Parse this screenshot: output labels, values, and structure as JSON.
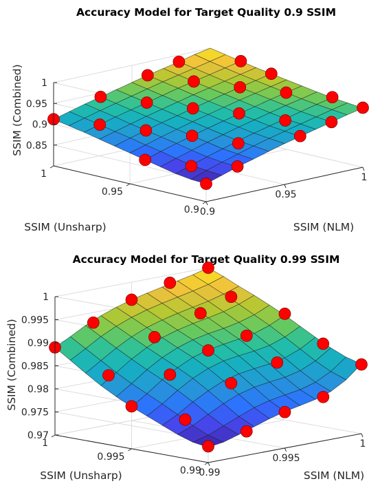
{
  "chart_data": [
    {
      "type": "surface",
      "title": "Accuracy Model for Target Quality 0.9 SSIM",
      "xlabel": "SSIM (NLM)",
      "ylabel": "SSIM (Unsharp)",
      "zlabel": "SSIM (Combined)",
      "xlim": [
        0.9,
        1
      ],
      "ylim": [
        0.9,
        1
      ],
      "zlim": [
        0.8,
        1
      ],
      "xticks": [
        "0.9",
        "0.95",
        "1"
      ],
      "yticks": [
        "0.9",
        "0.95",
        "1"
      ],
      "zticks": [
        "0.85",
        "0.9",
        "0.95",
        "1"
      ],
      "grid": true,
      "colormap": [
        "#3e26a8",
        "#4746eb",
        "#2c73fe",
        "#2795d9",
        "#16adc5",
        "#24bfa4",
        "#68c95e",
        "#b3c832",
        "#f0c03d",
        "#f9e51c"
      ],
      "grid_x": [
        0.9,
        0.91,
        0.92,
        0.93,
        0.94,
        0.95,
        0.96,
        0.97,
        0.98,
        0.99,
        1.0
      ],
      "grid_y": [
        0.9,
        0.91,
        0.92,
        0.93,
        0.94,
        0.95,
        0.96,
        0.97,
        0.98,
        0.99,
        1.0
      ],
      "surface_z": [
        [
          0.843,
          0.855,
          0.867,
          0.877,
          0.888,
          0.898,
          0.907,
          0.916,
          0.925,
          0.934,
          0.942
        ],
        [
          0.845,
          0.858,
          0.87,
          0.881,
          0.892,
          0.902,
          0.911,
          0.92,
          0.929,
          0.938,
          0.946
        ],
        [
          0.85,
          0.862,
          0.874,
          0.885,
          0.896,
          0.906,
          0.915,
          0.924,
          0.933,
          0.942,
          0.95
        ],
        [
          0.858,
          0.87,
          0.881,
          0.892,
          0.902,
          0.912,
          0.921,
          0.93,
          0.939,
          0.947,
          0.955
        ],
        [
          0.866,
          0.878,
          0.889,
          0.899,
          0.909,
          0.918,
          0.927,
          0.936,
          0.945,
          0.953,
          0.961
        ],
        [
          0.874,
          0.885,
          0.896,
          0.906,
          0.916,
          0.925,
          0.934,
          0.943,
          0.951,
          0.959,
          0.967
        ],
        [
          0.882,
          0.893,
          0.903,
          0.913,
          0.922,
          0.931,
          0.94,
          0.949,
          0.957,
          0.965,
          0.973
        ],
        [
          0.89,
          0.9,
          0.91,
          0.92,
          0.929,
          0.938,
          0.947,
          0.955,
          0.963,
          0.971,
          0.979
        ],
        [
          0.898,
          0.908,
          0.918,
          0.927,
          0.936,
          0.945,
          0.954,
          0.962,
          0.97,
          0.978,
          0.986
        ],
        [
          0.905,
          0.915,
          0.925,
          0.934,
          0.943,
          0.952,
          0.961,
          0.969,
          0.977,
          0.985,
          0.993
        ],
        [
          0.912,
          0.922,
          0.932,
          0.941,
          0.95,
          0.959,
          0.968,
          0.976,
          0.984,
          0.993,
          1.0
        ]
      ],
      "points": [
        [
          0.9,
          0.9,
          0.843
        ],
        [
          0.92,
          0.9,
          0.868
        ],
        [
          0.96,
          0.9,
          0.908
        ],
        [
          0.98,
          0.9,
          0.925
        ],
        [
          1.0,
          0.9,
          0.943
        ],
        [
          0.91,
          0.92,
          0.86
        ],
        [
          0.94,
          0.92,
          0.89
        ],
        [
          0.97,
          0.92,
          0.92
        ],
        [
          1.0,
          0.92,
          0.951
        ],
        [
          0.9,
          0.94,
          0.866
        ],
        [
          0.93,
          0.94,
          0.899
        ],
        [
          0.96,
          0.94,
          0.928
        ],
        [
          0.99,
          0.94,
          0.953
        ],
        [
          0.92,
          0.96,
          0.903
        ],
        [
          0.95,
          0.96,
          0.931
        ],
        [
          0.98,
          0.96,
          0.957
        ],
        [
          1.0,
          0.96,
          0.973
        ],
        [
          0.91,
          0.98,
          0.908
        ],
        [
          0.94,
          0.98,
          0.936
        ],
        [
          0.97,
          0.98,
          0.962
        ],
        [
          1.0,
          0.98,
          0.986
        ],
        [
          0.9,
          1.0,
          0.912
        ],
        [
          0.93,
          1.0,
          0.941
        ],
        [
          0.96,
          1.0,
          0.968
        ],
        [
          0.98,
          1.0,
          0.984
        ]
      ],
      "point_color": "#ff0000"
    },
    {
      "type": "surface",
      "title": "Accuracy Model for Target Quality 0.99 SSIM",
      "xlabel": "SSIM (NLM)",
      "ylabel": "SSIM (Unsharp)",
      "zlabel": "SSIM (Combined)",
      "xlim": [
        0.99,
        1
      ],
      "ylim": [
        0.99,
        1
      ],
      "zlim": [
        0.97,
        1
      ],
      "xticks": [
        "0.99",
        "0.995",
        "1"
      ],
      "yticks": [
        "0.99",
        "0.995",
        "1"
      ],
      "zticks": [
        "0.97",
        "0.975",
        "0.98",
        "0.985",
        "0.99",
        "0.995",
        "1"
      ],
      "grid": true,
      "colormap": [
        "#3e26a8",
        "#4746eb",
        "#2c73fe",
        "#2795d9",
        "#16adc5",
        "#24bfa4",
        "#68c95e",
        "#b3c832",
        "#f0c03d",
        "#f9e51c"
      ],
      "grid_x": [
        0.99,
        0.991,
        0.992,
        0.993,
        0.994,
        0.995,
        0.996,
        0.997,
        0.998,
        0.999,
        1.0
      ],
      "grid_y": [
        0.99,
        0.991,
        0.992,
        0.993,
        0.994,
        0.995,
        0.996,
        0.997,
        0.998,
        0.999,
        1.0
      ],
      "surface_z": [
        [
          0.9733,
          0.9738,
          0.9748,
          0.9759,
          0.977,
          0.9779,
          0.9786,
          0.9793,
          0.9804,
          0.9823,
          0.9851
        ],
        [
          0.9738,
          0.9747,
          0.9761,
          0.9775,
          0.9788,
          0.9797,
          0.9803,
          0.9808,
          0.9818,
          0.9835,
          0.986
        ],
        [
          0.9749,
          0.9762,
          0.978,
          0.9797,
          0.9811,
          0.982,
          0.9825,
          0.9829,
          0.9837,
          0.9852,
          0.9874
        ],
        [
          0.9763,
          0.978,
          0.9801,
          0.9819,
          0.9834,
          0.9843,
          0.9848,
          0.9852,
          0.9859,
          0.9872,
          0.9891
        ],
        [
          0.9777,
          0.9797,
          0.982,
          0.984,
          0.9855,
          0.9865,
          0.987,
          0.9874,
          0.988,
          0.9892,
          0.9909
        ],
        [
          0.9791,
          0.9813,
          0.9837,
          0.9857,
          0.9873,
          0.9883,
          0.9889,
          0.9894,
          0.99,
          0.9911,
          0.9927
        ],
        [
          0.9807,
          0.9829,
          0.9853,
          0.9873,
          0.9888,
          0.9899,
          0.9906,
          0.9911,
          0.9918,
          0.9928,
          0.9943
        ],
        [
          0.9825,
          0.9847,
          0.987,
          0.9889,
          0.9904,
          0.9914,
          0.9922,
          0.9928,
          0.9935,
          0.9945,
          0.9958
        ],
        [
          0.9846,
          0.9867,
          0.9888,
          0.9906,
          0.992,
          0.993,
          0.9938,
          0.9945,
          0.9952,
          0.9961,
          0.9972
        ],
        [
          0.9868,
          0.9887,
          0.9907,
          0.9923,
          0.9936,
          0.9946,
          0.9954,
          0.9961,
          0.9968,
          0.9976,
          0.9987
        ],
        [
          0.989,
          0.9907,
          0.9925,
          0.994,
          0.9952,
          0.9962,
          0.997,
          0.9977,
          0.9984,
          0.9991,
          1.0
        ]
      ],
      "points": [
        [
          0.99,
          0.99,
          0.9735
        ],
        [
          0.9925,
          0.99,
          0.9752
        ],
        [
          0.995,
          0.99,
          0.9778
        ],
        [
          0.9975,
          0.99,
          0.9795
        ],
        [
          1.0,
          0.99,
          0.985
        ],
        [
          0.991,
          0.9925,
          0.9772
        ],
        [
          0.994,
          0.9925,
          0.9832
        ],
        [
          0.997,
          0.9925,
          0.9858
        ],
        [
          1.0,
          0.9925,
          0.988
        ],
        [
          0.99,
          0.995,
          0.9792
        ],
        [
          0.9925,
          0.995,
          0.9845
        ],
        [
          0.995,
          0.995,
          0.9882
        ],
        [
          0.9975,
          0.995,
          0.9898
        ],
        [
          1.0,
          0.995,
          0.993
        ],
        [
          0.991,
          0.9975,
          0.9838
        ],
        [
          0.994,
          0.9975,
          0.9902
        ],
        [
          0.997,
          0.9975,
          0.9935
        ],
        [
          0.999,
          0.9975,
          0.9958
        ],
        [
          0.99,
          1.0,
          0.989
        ],
        [
          0.9925,
          1.0,
          0.9928
        ],
        [
          0.995,
          1.0,
          0.9962
        ],
        [
          0.9975,
          1.0,
          0.9983
        ],
        [
          1.0,
          1.0,
          1.0
        ]
      ],
      "point_color": "#ff0000"
    }
  ]
}
